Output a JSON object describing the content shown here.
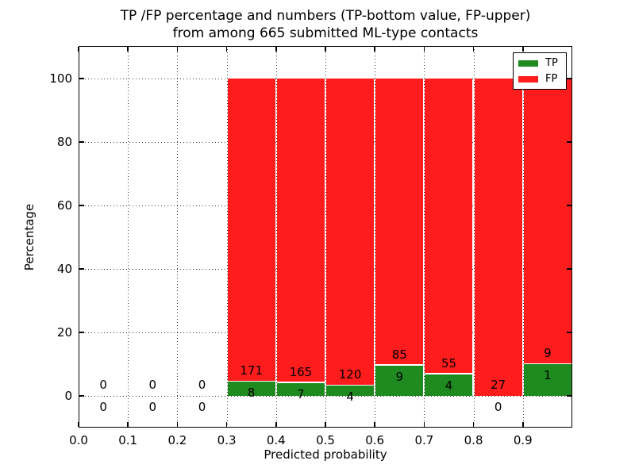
{
  "figure": {
    "title_line1": "TP /FP percentage and numbers (TP-bottom value, FP-upper)",
    "title_line2": "from among 665 submitted ML-type contacts"
  },
  "chart_data": {
    "type": "bar",
    "subtype": "stacked-percentage-histogram",
    "title": "TP /FP percentage and numbers (TP-bottom value, FP-upper) from among 665 submitted ML-type contacts",
    "xlabel": "Predicted probability",
    "ylabel": "Percentage",
    "xlim": [
      0.0,
      1.0
    ],
    "ylim": [
      -10,
      110
    ],
    "grid": "dotted",
    "bin_width": 0.1,
    "total_contacts": 665,
    "xticks": [
      "0.0",
      "0.1",
      "0.2",
      "0.3",
      "0.4",
      "0.5",
      "0.6",
      "0.7",
      "0.8",
      "0.9"
    ],
    "yticks": [
      "0",
      "20",
      "40",
      "60",
      "80",
      "100"
    ],
    "categories": [
      "0.0",
      "0.1",
      "0.2",
      "0.3",
      "0.4",
      "0.5",
      "0.6",
      "0.7",
      "0.8",
      "0.9"
    ],
    "series": [
      {
        "name": "TP",
        "color": "#1f8a1f",
        "counts": [
          0,
          0,
          0,
          8,
          7,
          4,
          9,
          4,
          0,
          1
        ]
      },
      {
        "name": "FP",
        "color": "#ff1c1c",
        "counts": [
          0,
          0,
          0,
          171,
          165,
          120,
          85,
          55,
          27,
          9
        ]
      }
    ],
    "tp_percent": [
      0,
      0,
      0,
      4.5,
      4.1,
      3.2,
      9.6,
      6.8,
      0,
      10.0
    ],
    "fp_percent": [
      0,
      0,
      0,
      95.5,
      95.9,
      96.8,
      90.4,
      93.2,
      100,
      90.0
    ],
    "label_rule": "upper number = FP count, lower number = TP count",
    "legend": {
      "position": "upper right",
      "entries": [
        {
          "label": "TP",
          "color": "#1f8a1f"
        },
        {
          "label": "FP",
          "color": "#ff1c1c"
        }
      ]
    }
  }
}
